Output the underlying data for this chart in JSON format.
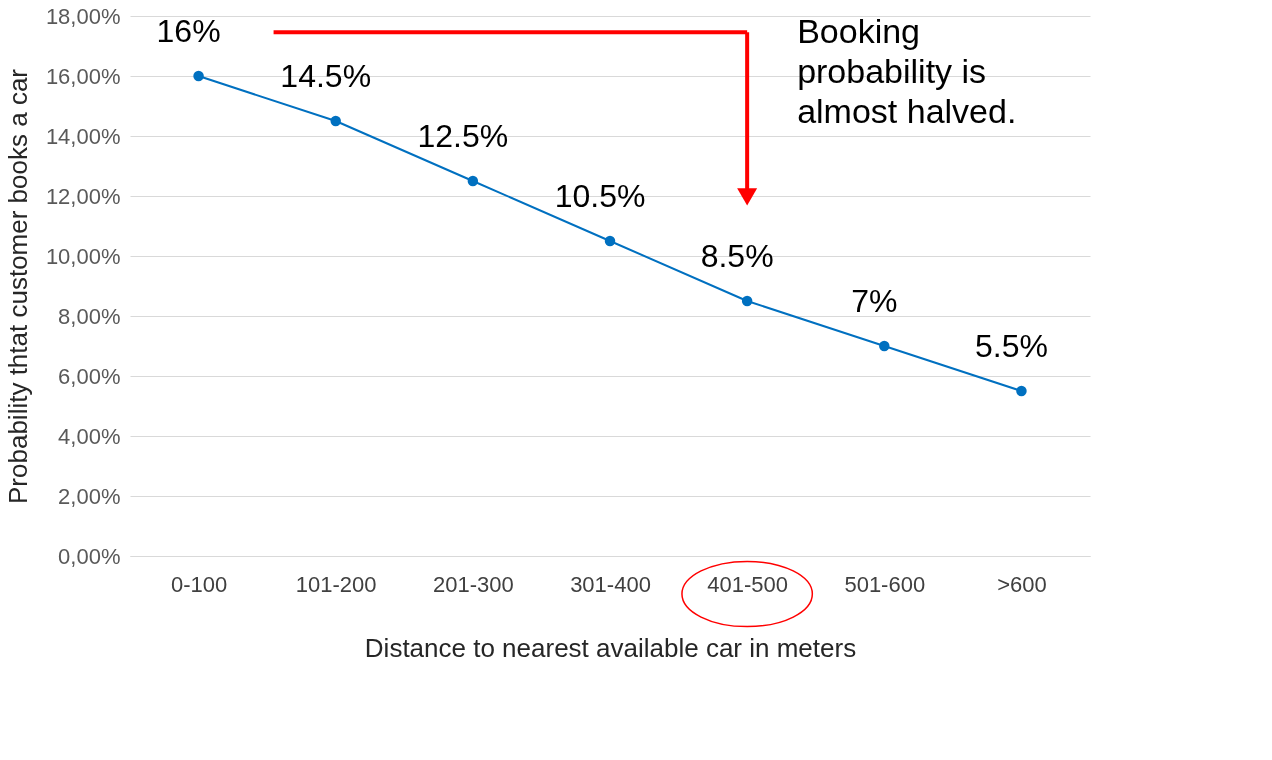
{
  "chart_data": {
    "type": "line",
    "categories": [
      "0-100",
      "101-200",
      "201-300",
      "301-400",
      "401-500",
      "501-600",
      ">600"
    ],
    "series": [
      {
        "color": "#0070c0",
        "values": [
          16,
          14.5,
          12.5,
          10.5,
          8.5,
          7,
          5.5
        ],
        "value_labels": [
          "16%",
          "14.5%",
          "12.5%",
          "10.5%",
          "8.5%",
          "7%",
          "5.5%"
        ]
      }
    ],
    "xlabel": "Distance to nearest available car in meters",
    "ylabel": "Probability thtat customer books a car",
    "ylim": [
      0,
      18
    ],
    "yticks": [
      {
        "value": 0,
        "label": "0,00%"
      },
      {
        "value": 2,
        "label": "2,00%"
      },
      {
        "value": 4,
        "label": "4,00%"
      },
      {
        "value": 6,
        "label": "6,00%"
      },
      {
        "value": 8,
        "label": "8,00%"
      },
      {
        "value": 10,
        "label": "10,00%"
      },
      {
        "value": 12,
        "label": "12,00%"
      },
      {
        "value": 14,
        "label": "14,00%"
      },
      {
        "value": 16,
        "label": "16,00%"
      },
      {
        "value": 18,
        "label": "18,00%"
      }
    ],
    "grid": "y",
    "marker": "circle",
    "line_style": "solid",
    "annotations": [
      "Booking probability is almost halved."
    ]
  }
}
